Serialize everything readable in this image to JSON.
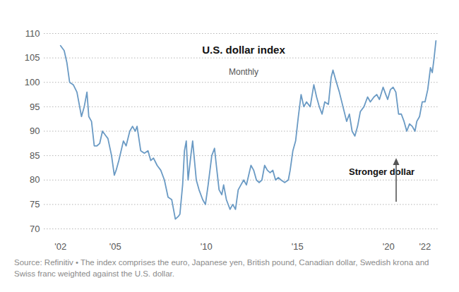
{
  "chart_data": {
    "type": "line",
    "title": "U.S. dollar index",
    "subtitle": "Monthly",
    "annotations": [
      "Stronger dollar"
    ],
    "caption": "Source: Refinitiv • The index comprises the euro, Japanese yen, British pound, Canadian dollar, Swedish krona and Swiss franc weighted against the U.S. dollar.",
    "color": "#6a9ac4",
    "grid": true,
    "xlim": [
      2001.1,
      2022.8
    ],
    "xticks": [
      {
        "value": 2002,
        "label": "'02"
      },
      {
        "value": 2005,
        "label": "'05"
      },
      {
        "value": 2010,
        "label": "'10"
      },
      {
        "value": 2015,
        "label": "'15"
      },
      {
        "value": 2020,
        "label": "'20"
      },
      {
        "value": 2022,
        "label": "'22"
      }
    ],
    "ylim": [
      70,
      110
    ],
    "yticks": [
      70,
      75,
      80,
      85,
      90,
      95,
      100,
      105,
      110
    ],
    "x": [
      2002.0,
      2002.2,
      2002.35,
      2002.5,
      2002.7,
      2002.9,
      2003.0,
      2003.15,
      2003.3,
      2003.45,
      2003.55,
      2003.7,
      2003.85,
      2004.0,
      2004.15,
      2004.3,
      2004.5,
      2004.6,
      2004.8,
      2004.95,
      2005.05,
      2005.2,
      2005.45,
      2005.6,
      2005.8,
      2005.95,
      2006.1,
      2006.2,
      2006.4,
      2006.6,
      2006.8,
      2006.95,
      2007.1,
      2007.3,
      2007.5,
      2007.7,
      2007.9,
      2008.1,
      2008.3,
      2008.45,
      2008.55,
      2008.7,
      2008.8,
      2008.9,
      2009.0,
      2009.15,
      2009.25,
      2009.45,
      2009.6,
      2009.8,
      2009.95,
      2010.1,
      2010.3,
      2010.45,
      2010.55,
      2010.7,
      2010.85,
      2010.95,
      2011.1,
      2011.3,
      2011.45,
      2011.6,
      2011.75,
      2011.9,
      2012.05,
      2012.2,
      2012.45,
      2012.6,
      2012.75,
      2012.9,
      2013.05,
      2013.2,
      2013.35,
      2013.5,
      2013.65,
      2013.8,
      2013.95,
      2014.1,
      2014.3,
      2014.5,
      2014.6,
      2014.75,
      2014.9,
      2015.05,
      2015.2,
      2015.35,
      2015.5,
      2015.7,
      2015.9,
      2016.05,
      2016.2,
      2016.35,
      2016.5,
      2016.7,
      2016.85,
      2016.95,
      2017.1,
      2017.3,
      2017.5,
      2017.7,
      2017.85,
      2018.0,
      2018.15,
      2018.3,
      2018.45,
      2018.65,
      2018.85,
      2019.0,
      2019.2,
      2019.35,
      2019.5,
      2019.7,
      2019.85,
      2019.95,
      2020.1,
      2020.25,
      2020.4,
      2020.55,
      2020.7,
      2020.85,
      2021.0,
      2021.15,
      2021.3,
      2021.45,
      2021.55,
      2021.7,
      2021.85,
      2022.0,
      2022.15,
      2022.3,
      2022.4,
      2022.5,
      2022.6
    ],
    "values": [
      107.5,
      106.5,
      104,
      100,
      99.5,
      98,
      96,
      93,
      95,
      98,
      93,
      92,
      87,
      87,
      87.5,
      90,
      89,
      88.5,
      85,
      81,
      82,
      84,
      88,
      87,
      90,
      91,
      90,
      91,
      86,
      85.5,
      86,
      84,
      84.5,
      83,
      82,
      80,
      76.5,
      76,
      72,
      72.5,
      73,
      79,
      86,
      88,
      80,
      85,
      88,
      80,
      78,
      76,
      75,
      79,
      85,
      86.5,
      83,
      78,
      77,
      79,
      76,
      74,
      75,
      74,
      78,
      79,
      80,
      79,
      83,
      82,
      80,
      79.5,
      80,
      83,
      82,
      81.5,
      82,
      80,
      80.5,
      80,
      79.5,
      80,
      82,
      86,
      88,
      93,
      97.5,
      95,
      96,
      95,
      99.5,
      97,
      95,
      93.5,
      96,
      95.5,
      101,
      102.5,
      100.5,
      98,
      95,
      92,
      93.5,
      90,
      89,
      91,
      94,
      95,
      97,
      96,
      97,
      97.5,
      96.5,
      99,
      97.5,
      96.5,
      98.5,
      99,
      98,
      93.5,
      93.5,
      92,
      90,
      91.5,
      91,
      90,
      92,
      93,
      96,
      96,
      98.5,
      103,
      102,
      105,
      108.5
    ]
  }
}
